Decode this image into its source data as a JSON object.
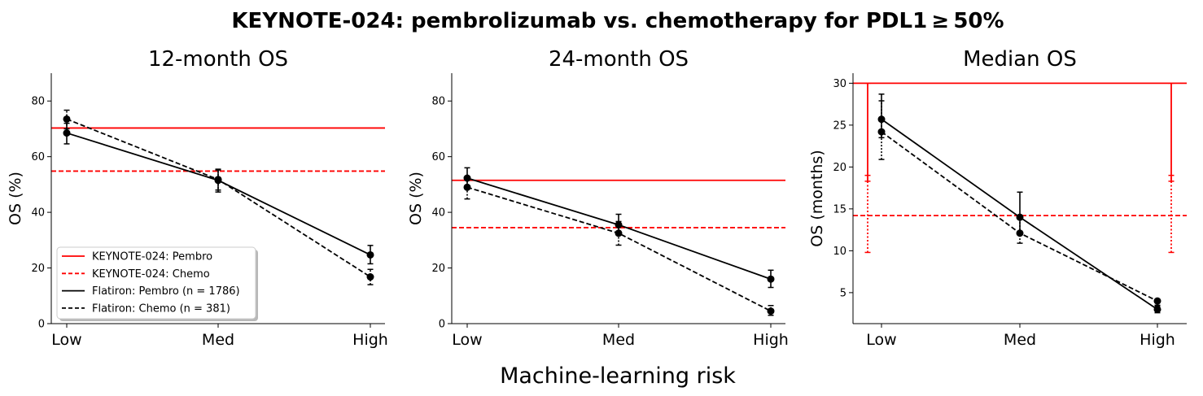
{
  "suptitle": "KEYNOTE-024: pembrolizumab vs. chemotherapy for PDL1 ≥ 50%",
  "supxlabel": "Machine-learning risk",
  "colors": {
    "trial": "#ff0000",
    "flatiron": "#000000"
  },
  "legend": [
    {
      "label": "KEYNOTE-024: Pembro",
      "color": "#ff0000",
      "dash": "solid"
    },
    {
      "label": "KEYNOTE-024: Chemo",
      "color": "#ff0000",
      "dash": "dashed"
    },
    {
      "label": "Flatiron: Pembro (n = 1786)",
      "color": "#000000",
      "dash": "solid"
    },
    {
      "label": "Flatiron: Chemo (n = 381)",
      "color": "#000000",
      "dash": "dashed"
    }
  ],
  "chart_data": [
    {
      "type": "line",
      "title": "12-month OS",
      "ylabel": "OS (%)",
      "categories": [
        "Low",
        "Med",
        "High"
      ],
      "ylim": [
        0,
        90
      ],
      "yticks": [
        0,
        20,
        40,
        60,
        80
      ],
      "legend_position": "lower-left",
      "reference_lines": [
        {
          "name": "KEYNOTE-024: Pembro",
          "value": 70.3,
          "dash": "solid"
        },
        {
          "name": "KEYNOTE-024: Chemo",
          "value": 54.8,
          "dash": "dashed"
        }
      ],
      "series": [
        {
          "name": "Flatiron: Pembro (n = 1786)",
          "dash": "solid",
          "values": [
            68.5,
            51.5,
            24.7
          ],
          "lower": [
            64.6,
            48.0,
            21.5
          ],
          "upper": [
            72.0,
            55.2,
            28.1
          ]
        },
        {
          "name": "Flatiron: Chemo (n = 381)",
          "dash": "dashed",
          "values": [
            73.5,
            51.8,
            16.8
          ],
          "lower": [
            70.0,
            47.3,
            14.0
          ],
          "upper": [
            76.7,
            55.5,
            19.5
          ]
        }
      ]
    },
    {
      "type": "line",
      "title": "24-month OS",
      "ylabel": "OS (%)",
      "categories": [
        "Low",
        "Med",
        "High"
      ],
      "ylim": [
        0,
        90
      ],
      "yticks": [
        0,
        20,
        40,
        60,
        80
      ],
      "reference_lines": [
        {
          "name": "KEYNOTE-024: Pembro",
          "value": 51.5,
          "dash": "solid"
        },
        {
          "name": "KEYNOTE-024: Chemo",
          "value": 34.5,
          "dash": "dashed"
        }
      ],
      "series": [
        {
          "name": "Flatiron: Pembro (n = 1786)",
          "dash": "solid",
          "values": [
            52.3,
            35.5,
            16.0
          ],
          "lower": [
            48.5,
            31.8,
            13.0
          ],
          "upper": [
            56.0,
            39.3,
            19.2
          ]
        },
        {
          "name": "Flatiron: Chemo (n = 381)",
          "dash": "dashed",
          "values": [
            49.0,
            32.5,
            4.5
          ],
          "lower": [
            44.8,
            28.2,
            3.0
          ],
          "upper": [
            52.7,
            36.7,
            6.5
          ]
        }
      ]
    },
    {
      "type": "line",
      "title": "Median OS",
      "ylabel": "OS (months)",
      "categories": [
        "Low",
        "Med",
        "High"
      ],
      "ylim": [
        1.3,
        31.2
      ],
      "yticks": [
        5,
        10,
        15,
        20,
        25,
        30
      ],
      "reference_lines": [
        {
          "name": "KEYNOTE-024: Pembro",
          "value": 30.0,
          "dash": "solid",
          "ci": [
            18.3,
            30.0
          ]
        },
        {
          "name": "KEYNOTE-024: Chemo",
          "value": 14.2,
          "dash": "dashed",
          "ci": [
            9.8,
            19.0
          ]
        }
      ],
      "series": [
        {
          "name": "Flatiron: Pembro (n = 1786)",
          "dash": "solid",
          "values": [
            25.7,
            14.0,
            3.0
          ],
          "lower": [
            23.5,
            12.0,
            2.6
          ],
          "upper": [
            28.7,
            17.0,
            3.5
          ]
        },
        {
          "name": "Flatiron: Chemo (n = 381)",
          "dash": "dashed",
          "values": [
            24.2,
            12.1,
            4.0
          ],
          "lower": [
            20.9,
            10.9,
            3.4
          ],
          "upper": [
            27.9,
            13.8,
            4.2
          ]
        }
      ]
    }
  ]
}
